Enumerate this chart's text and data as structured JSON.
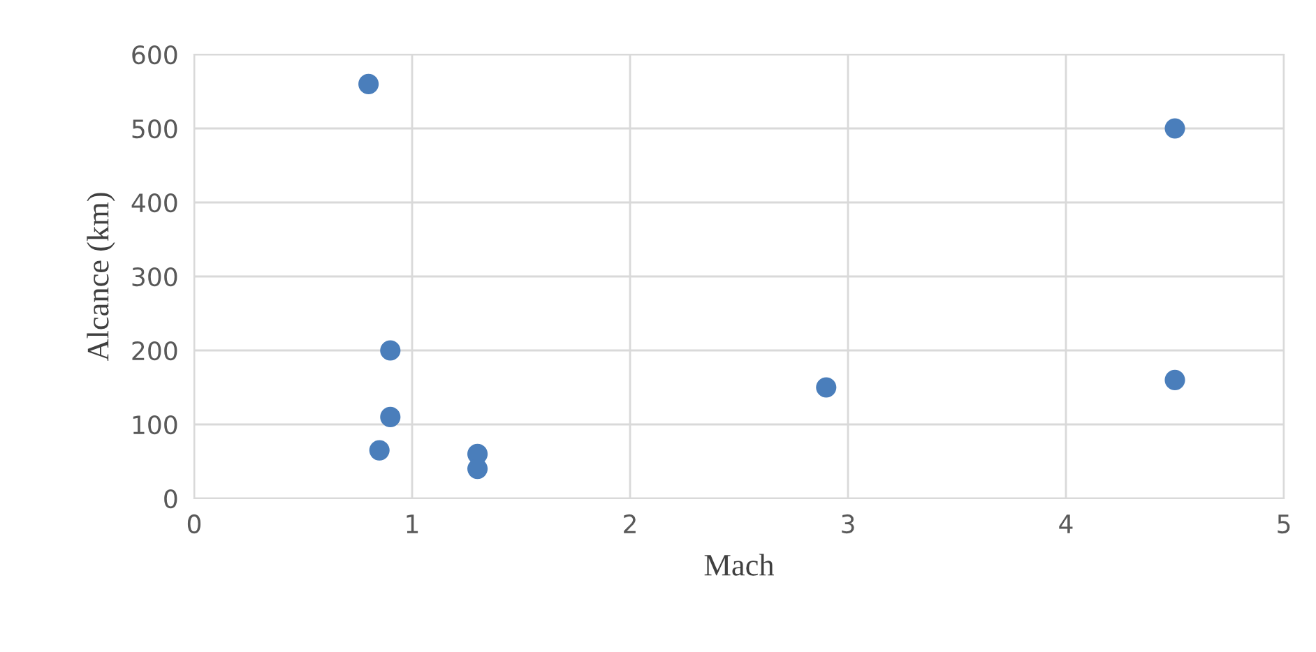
{
  "chart_data": {
    "type": "scatter",
    "xlabel": "Mach",
    "ylabel": "Alcance (km)",
    "x": [
      0.8,
      4.5,
      0.9,
      0.9,
      0.85,
      1.3,
      1.3,
      2.9,
      4.5
    ],
    "values": [
      560,
      500,
      200,
      110,
      65,
      60,
      40,
      150,
      160
    ],
    "color": "#4a7ebb",
    "marker": "circle",
    "xlim": [
      0,
      5
    ],
    "xticks": [
      0,
      1,
      2,
      3,
      4,
      5
    ],
    "ylim": [
      0,
      600
    ],
    "yticks": [
      0,
      100,
      200,
      300,
      400,
      500,
      600
    ],
    "grid": true,
    "legend": false
  }
}
